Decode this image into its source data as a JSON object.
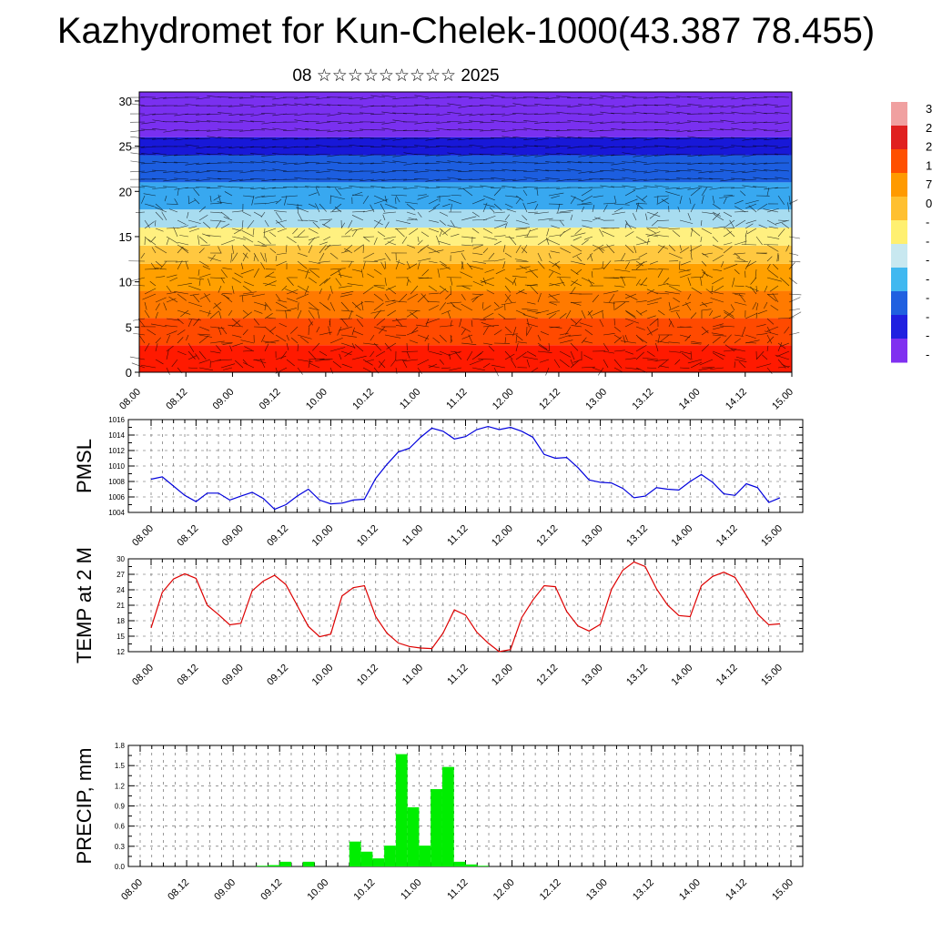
{
  "title": "Kazhydromet for Kun-Chelek-1000(43.387 78.455)",
  "subtitle": "08 ☆☆☆☆☆☆☆☆☆ 2025",
  "time_ticks": [
    "08.00",
    "08.12",
    "09.00",
    "09.12",
    "10.00",
    "10.12",
    "11.00",
    "11.12",
    "12.00",
    "12.12",
    "13.00",
    "13.12",
    "14.00",
    "14.12",
    "15.00"
  ],
  "colorbar": {
    "labels": [
      "3",
      "2",
      "2",
      "1",
      "7",
      "0",
      "-",
      "-",
      "-",
      "-",
      "-",
      "-",
      "-",
      "-"
    ],
    "colors": [
      "#f0a0a0",
      "#e02020",
      "#ff5000",
      "#ff9a00",
      "#ffc030",
      "#fff070",
      "#c8e8f0",
      "#40b8f0",
      "#2060e0",
      "#2020e0",
      "#8030f0"
    ]
  },
  "chart_data": [
    {
      "type": "heatmap",
      "name": "cross-section",
      "ylim": [
        0,
        31
      ],
      "yticks": [
        0,
        5,
        10,
        15,
        20,
        25,
        30
      ],
      "bands": [
        {
          "y0": 0,
          "y1": 3,
          "color": "#ff1a00"
        },
        {
          "y0": 3,
          "y1": 6,
          "color": "#ff4a00"
        },
        {
          "y0": 6,
          "y1": 9,
          "color": "#ff7a00"
        },
        {
          "y0": 9,
          "y1": 12,
          "color": "#ffa000"
        },
        {
          "y0": 12,
          "y1": 14,
          "color": "#ffc840"
        },
        {
          "y0": 14,
          "y1": 16,
          "color": "#fff080"
        },
        {
          "y0": 16,
          "y1": 18,
          "color": "#a8dcf0"
        },
        {
          "y0": 18,
          "y1": 21,
          "color": "#38a8f0"
        },
        {
          "y0": 21,
          "y1": 24,
          "color": "#1c5ee0"
        },
        {
          "y0": 24,
          "y1": 26,
          "color": "#1818d8"
        },
        {
          "y0": 26,
          "y1": 31,
          "color": "#7a30f0"
        }
      ]
    },
    {
      "type": "line",
      "ylabel": "PMSL",
      "ylim": [
        1004,
        1016
      ],
      "yticks": [
        1004,
        1006,
        1008,
        1010,
        1012,
        1014,
        1016
      ],
      "color": "#0000dd",
      "x": [
        0,
        3,
        6,
        9,
        12,
        15,
        18,
        21,
        24,
        27,
        30,
        33,
        36,
        39,
        42,
        45,
        48,
        51,
        54,
        57,
        60,
        63,
        66,
        69,
        72,
        75,
        78,
        81,
        84,
        87,
        90,
        93,
        96,
        99,
        102,
        105,
        108,
        111,
        114,
        117,
        120,
        123,
        126,
        129,
        132,
        135,
        138,
        141,
        144,
        147,
        150,
        153,
        156,
        159,
        162,
        165,
        168
      ],
      "values": [
        1008.3,
        1008.6,
        1007.4,
        1006.2,
        1005.4,
        1006.5,
        1006.5,
        1005.6,
        1006.1,
        1006.6,
        1005.8,
        1004.4,
        1005.0,
        1006.1,
        1007.0,
        1005.6,
        1005.1,
        1005.2,
        1005.6,
        1005.7,
        1008.4,
        1010.2,
        1011.8,
        1012.3,
        1013.7,
        1014.9,
        1014.5,
        1013.5,
        1013.8,
        1014.7,
        1015.1,
        1014.7,
        1015.0,
        1014.5,
        1013.7,
        1011.5,
        1011.0,
        1011.1,
        1009.8,
        1008.2,
        1007.9,
        1007.8,
        1007.1,
        1005.9,
        1006.1,
        1007.2,
        1007.0,
        1006.9,
        1008.0,
        1008.9,
        1007.9,
        1006.4,
        1006.2,
        1007.7,
        1007.2,
        1005.3,
        1005.9
      ]
    },
    {
      "type": "line",
      "ylabel": "TEMP at 2 M",
      "ylim": [
        12,
        30
      ],
      "yticks": [
        12,
        15,
        18,
        21,
        24,
        27,
        30
      ],
      "color": "#dd0000",
      "x": [
        0,
        3,
        6,
        9,
        12,
        15,
        18,
        21,
        24,
        27,
        30,
        33,
        36,
        39,
        42,
        45,
        48,
        51,
        54,
        57,
        60,
        63,
        66,
        69,
        72,
        75,
        78,
        81,
        84,
        87,
        90,
        93,
        96,
        99,
        102,
        105,
        108,
        111,
        114,
        117,
        120,
        123,
        126,
        129,
        132,
        135,
        138,
        141,
        144,
        147,
        150,
        153,
        156,
        159,
        162,
        165,
        168
      ],
      "values": [
        16.6,
        23.5,
        26.1,
        27.1,
        26.2,
        21.0,
        19.2,
        17.2,
        17.5,
        23.8,
        25.7,
        26.8,
        25.0,
        21.0,
        16.9,
        14.9,
        15.4,
        22.8,
        24.4,
        24.8,
        18.8,
        15.6,
        13.7,
        13.0,
        12.7,
        12.6,
        15.6,
        20.1,
        19.1,
        15.8,
        13.7,
        12.0,
        12.4,
        18.6,
        22.0,
        24.8,
        24.6,
        19.8,
        17.0,
        16.0,
        17.3,
        24.1,
        27.8,
        29.4,
        28.5,
        24.2,
        21.0,
        19.0,
        18.8,
        24.8,
        26.6,
        27.4,
        26.4,
        22.9,
        19.3,
        17.2,
        17.4
      ]
    },
    {
      "type": "bar",
      "ylabel": "PRECIP, mm",
      "ylim": [
        0,
        1.8
      ],
      "yticks": [
        0.0,
        0.3,
        0.6,
        0.9,
        1.2,
        1.5,
        1.8
      ],
      "ytick_labels": [
        "0.0",
        "0.3",
        "0.6",
        "0.9",
        "1.2",
        "1.5",
        "1.8"
      ],
      "color": "#00ee00",
      "x": [
        30,
        33,
        36,
        42,
        54,
        57,
        60,
        63,
        66,
        69,
        72,
        75,
        78,
        81,
        84,
        87
      ],
      "values": [
        0.01,
        0.02,
        0.07,
        0.07,
        0.37,
        0.22,
        0.12,
        0.31,
        1.67,
        0.88,
        0.31,
        1.15,
        1.48,
        0.07,
        0.03,
        0.01
      ]
    }
  ]
}
